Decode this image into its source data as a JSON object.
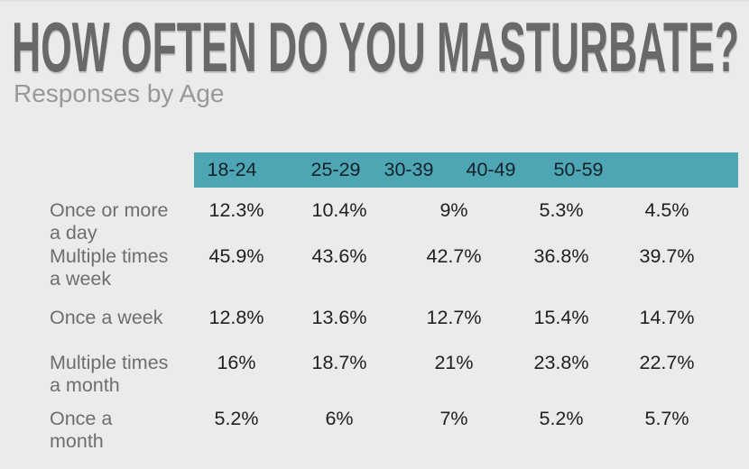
{
  "page": {
    "title": "HOW OFTEN DO YOU MASTURBATE?",
    "subtitle": "Responses by Age"
  },
  "colors": {
    "background": "#ebebeb",
    "header_band": "#4ea6b5",
    "header_text": "#13222a",
    "title_text": "#696969",
    "subtitle_text": "#989898",
    "row_label_text": "#6e6e6e",
    "value_text": "#202020"
  },
  "chart_data": {
    "type": "table",
    "title": "HOW OFTEN DO YOU MASTURBATE?",
    "subtitle": "Responses by Age",
    "columns": [
      "18-24",
      "25-29",
      "30-39",
      "40-49",
      "50-59"
    ],
    "rows": [
      {
        "label": "Once or more a day",
        "lines": [
          "Once or more",
          "a day"
        ],
        "values": [
          "12.3%",
          "10.4%",
          "9%",
          "5.3%",
          "4.5%"
        ]
      },
      {
        "label": "Multiple times a week",
        "lines": [
          "Multiple times",
          "a week"
        ],
        "values": [
          "45.9%",
          "43.6%",
          "42.7%",
          "36.8%",
          "39.7%"
        ]
      },
      {
        "label": "Once a week",
        "lines": [
          "Once a week"
        ],
        "values": [
          "12.8%",
          "13.6%",
          "12.7%",
          "15.4%",
          "14.7%"
        ]
      },
      {
        "label": "Multiple times a month",
        "lines": [
          "Multiple times",
          "a month"
        ],
        "values": [
          "16%",
          "18.7%",
          "21%",
          "23.8%",
          "22.7%"
        ]
      },
      {
        "label": "Once a month",
        "lines": [
          "Once a",
          "month"
        ],
        "values": [
          "5.2%",
          "6%",
          "7%",
          "5.2%",
          "5.7%"
        ]
      }
    ],
    "layout_hints": {
      "legend": "none",
      "grid": "off",
      "header_style": "teal band row of age ranges",
      "value_format": "percent"
    }
  }
}
